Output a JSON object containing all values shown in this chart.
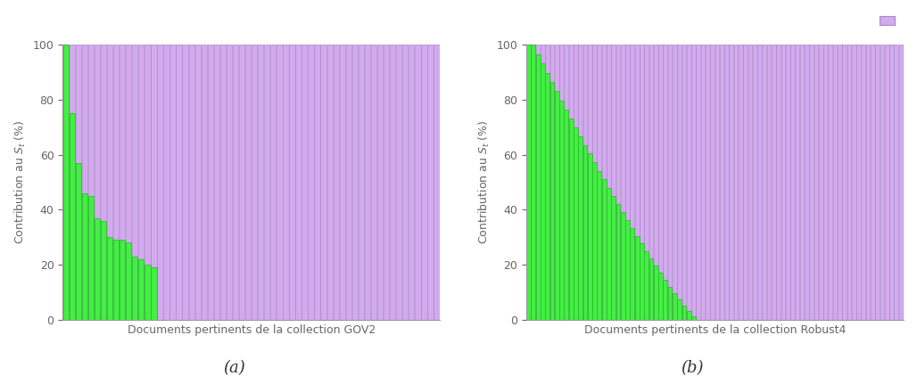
{
  "gov2_n_bars": 60,
  "robust4_n_bars": 80,
  "gov2_green_values": [
    100,
    75,
    57,
    46,
    45,
    37,
    36,
    30,
    29,
    29,
    28,
    23,
    22,
    20,
    19,
    0,
    0,
    0,
    0,
    0,
    0,
    0,
    0,
    0,
    0,
    0,
    0,
    0,
    0,
    0,
    0,
    0,
    0,
    0,
    0,
    0,
    0,
    0,
    0,
    0,
    0,
    0,
    0,
    0,
    0,
    0,
    0,
    0,
    0,
    0,
    0,
    0,
    0,
    0,
    0,
    0,
    0,
    0,
    0,
    0
  ],
  "green_color": "#44ee44",
  "purple_color": "#d4aaee",
  "purple_line_color": "#aa88cc",
  "green_line_color": "#22bb22",
  "bar_width": 0.9,
  "ylabel": "Contribution au $S_t$ (%)",
  "xlabel_gov2": "Documents pertinents de la collection GOV2",
  "xlabel_robust4": "Documents pertinents de la collection Robust4",
  "label_a": "(a)",
  "label_b": "(b)",
  "ylim": [
    0,
    100
  ],
  "yticks": [
    0,
    20,
    40,
    60,
    80,
    100
  ],
  "background_color": "#ffffff",
  "axis_color": "#999999",
  "text_color": "#666666",
  "label_fontsize": 9,
  "tick_fontsize": 9,
  "ab_fontsize": 13
}
